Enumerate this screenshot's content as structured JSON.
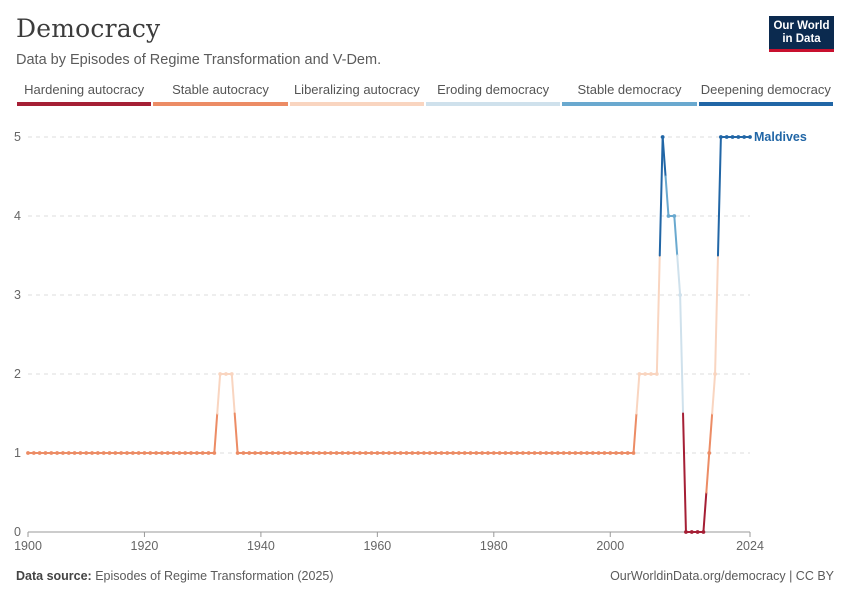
{
  "header": {
    "title": "Democracy",
    "subtitle": "Data by Episodes of Regime Transformation and V-Dem.",
    "logo_line1": "Our World",
    "logo_line2": "in Data"
  },
  "legend": [
    {
      "label": "Hardening autocracy",
      "color": "#a51f35"
    },
    {
      "label": "Stable autocracy",
      "color": "#ec8c65"
    },
    {
      "label": "Liberalizing autocracy",
      "color": "#f9d5c0"
    },
    {
      "label": "Eroding democracy",
      "color": "#cfe1ec"
    },
    {
      "label": "Stable democracy",
      "color": "#6aa9cf"
    },
    {
      "label": "Deepening democracy",
      "color": "#2166a6"
    }
  ],
  "footer": {
    "source_label": "Data source:",
    "source_text": "Episodes of Regime Transformation (2025)",
    "right_text": "OurWorldinData.org/democracy | CC BY"
  },
  "chart_data": {
    "type": "line",
    "title": "Democracy",
    "xlabel": "",
    "ylabel": "",
    "xlim": [
      1900,
      2024
    ],
    "ylim": [
      0,
      5
    ],
    "x_ticks": [
      "1900",
      "1920",
      "1940",
      "1960",
      "1980",
      "2000",
      "2024"
    ],
    "y_ticks": [
      "0",
      "1",
      "2",
      "3",
      "4",
      "5"
    ],
    "grid": "horizontal dashed",
    "series": [
      {
        "name": "Maldives",
        "label_color": "#2166a6",
        "runs": [
          {
            "start": 1900,
            "end": 1932,
            "value": 1
          },
          {
            "start": 1933,
            "end": 1935,
            "value": 2
          },
          {
            "start": 1936,
            "end": 2004,
            "value": 1
          },
          {
            "start": 2005,
            "end": 2008,
            "value": 2
          },
          {
            "start": 2009,
            "end": 2009,
            "value": 5
          },
          {
            "start": 2010,
            "end": 2011,
            "value": 4
          },
          {
            "start": 2012,
            "end": 2012,
            "value": 3
          },
          {
            "start": 2013,
            "end": 2016,
            "value": 0
          },
          {
            "start": 2017,
            "end": 2017,
            "value": 1
          },
          {
            "start": 2018,
            "end": 2018,
            "value": 2
          },
          {
            "start": 2019,
            "end": 2024,
            "value": 5
          }
        ]
      }
    ]
  }
}
